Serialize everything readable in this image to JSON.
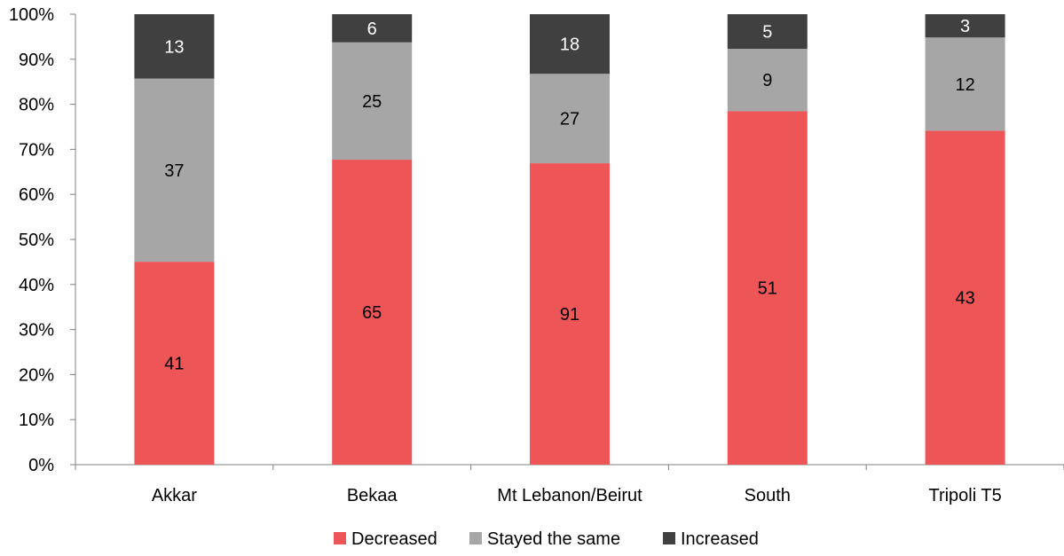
{
  "chart_data": {
    "type": "bar",
    "stacked": true,
    "normalized": true,
    "categories": [
      "Akkar",
      "Bekaa",
      "Mt Lebanon/Beirut",
      "South",
      "Tripoli T5"
    ],
    "series": [
      {
        "name": "Decreased",
        "color": "#EE5557",
        "label_color": "#000000",
        "values": [
          41,
          65,
          91,
          51,
          43
        ]
      },
      {
        "name": "Stayed the same",
        "color": "#A6A6A6",
        "label_color": "#000000",
        "values": [
          37,
          25,
          27,
          9,
          12
        ]
      },
      {
        "name": "Increased",
        "color": "#404040",
        "label_color": "#ffffff",
        "values": [
          13,
          6,
          18,
          5,
          3
        ]
      }
    ],
    "y_ticks": [
      "0%",
      "10%",
      "20%",
      "30%",
      "40%",
      "50%",
      "60%",
      "70%",
      "80%",
      "90%",
      "100%"
    ],
    "ylim": [
      0,
      100
    ],
    "grid": false,
    "legend_position": "bottom",
    "title": "",
    "xlabel": "",
    "ylabel": ""
  }
}
